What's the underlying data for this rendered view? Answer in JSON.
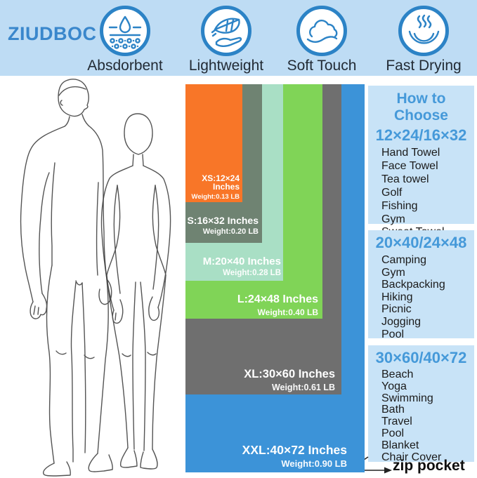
{
  "header": {
    "brand": "ZIUDBOC",
    "features": [
      {
        "label": "Absdorbent"
      },
      {
        "label": "Lightweight"
      },
      {
        "label": "Soft Touch"
      },
      {
        "label": "Fast Drying"
      }
    ]
  },
  "sizes": {
    "xs": {
      "label": "XS:12×24 Inches",
      "weight": "Weight:0.13 LB",
      "color": "#F87628"
    },
    "s": {
      "label": "S:16×32 Inches",
      "weight": "Weight:0.20 LB",
      "color": "#6F8372"
    },
    "m": {
      "label": "M:20×40 Inches",
      "weight": "Weight:0.28 LB",
      "color": "#A9DFC5"
    },
    "l": {
      "label": "L:24×48 Inches",
      "weight": "Weight:0.40 LB",
      "color": "#80D457"
    },
    "xl": {
      "label": "XL:30×60 Inches",
      "weight": "Weight:0.61 LB",
      "color": "#6F6F6F"
    },
    "xxl": {
      "label": "XXL:40×72 Inches",
      "weight": "Weight:0.90 LB",
      "color": "#3C93D8"
    }
  },
  "guide": {
    "title": "How to Choose",
    "sections": [
      {
        "header": "12×24/16×32",
        "items": [
          "Hand Towel",
          "Face Towel",
          "Tea towel",
          "Golf",
          "Fishing",
          "Gym",
          "Sweat Towel"
        ]
      },
      {
        "header": "20×40/24×48",
        "items": [
          "Camping",
          "Gym",
          "Backpacking",
          "Hiking",
          "Picnic",
          "Jogging",
          "Pool"
        ]
      },
      {
        "header": "30×60/40×72",
        "items": [
          "Beach",
          "Yoga",
          "Swimming",
          "Bath",
          "Travel",
          "Pool",
          "Blanket",
          "Chair Cover"
        ]
      }
    ]
  },
  "annotation": {
    "label": "zip pocket"
  },
  "colors": {
    "header_bg": "#BEDCF4",
    "panel_bg": "#C8E3F7",
    "accent_blue": "#3A87CC",
    "icon_blue": "#2C83C6",
    "guide_blue": "#4599D9"
  }
}
